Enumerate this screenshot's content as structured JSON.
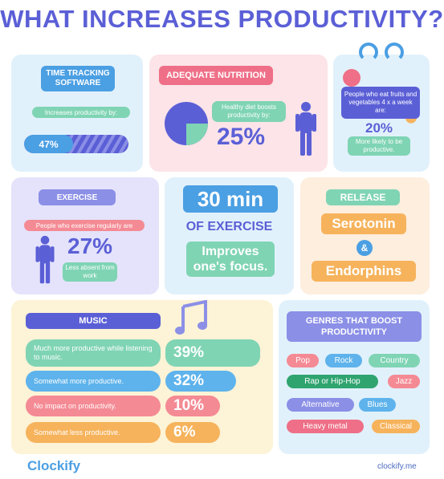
{
  "title": "WHAT INCREASES PRODUCTIVITY?",
  "time_tracking": {
    "heading": "TIME TRACKING SOFTWARE",
    "caption": "Increases productivity by:",
    "percent": "47%",
    "fraction": 0.47
  },
  "nutrition": {
    "heading": "ADEQUATE NUTRITION",
    "caption": "Healthy diet boosts productivity by:",
    "percent": "25%",
    "pie_fraction": 0.25
  },
  "fruit": {
    "caption": "People who eat fruits and vegetables 4 x a week are:",
    "percent": "20%",
    "subcaption": "More likely to be productive."
  },
  "exercise": {
    "heading": "EXERCISE",
    "caption": "People who exercise regularly are",
    "percent": "27%",
    "subcaption": "Less absent from work"
  },
  "thirty": {
    "big": "30 min",
    "sub": "OF EXERCISE",
    "focus": "Improves one's focus."
  },
  "release": {
    "heading": "RELEASE",
    "item1": "Serotonin",
    "amp": "&",
    "item2": "Endorphins"
  },
  "music": {
    "heading": "MUSIC",
    "rows": [
      {
        "label": "Much more productive while listening to music.",
        "value": "39%",
        "color": "#7fd4b4"
      },
      {
        "label": "Somewhat more productive.",
        "value": "32%",
        "color": "#5eb3ec"
      },
      {
        "label": "No impact on productivity.",
        "value": "10%",
        "color": "#f48a94"
      },
      {
        "label": "Somewhat less productive.",
        "value": "6%",
        "color": "#f6b35c"
      }
    ]
  },
  "genres": {
    "heading": "GENRES THAT BOOST PRODUCTIVITY",
    "items": [
      "Pop",
      "Rock",
      "Country",
      "Rap or Hip-Hop",
      "Jazz",
      "Alternative",
      "Blues",
      "Heavy metal",
      "Classical"
    ]
  },
  "footer": {
    "logo": "Clockify",
    "url": "clockify.me"
  },
  "colors": {
    "accent": "#5b5fd6",
    "blue_card": "#e1f1fb",
    "pink_card": "#fce4e8",
    "purple_card": "#e4e3fb",
    "peach_card": "#fdeede",
    "yellow_card": "#fdf3d6"
  }
}
